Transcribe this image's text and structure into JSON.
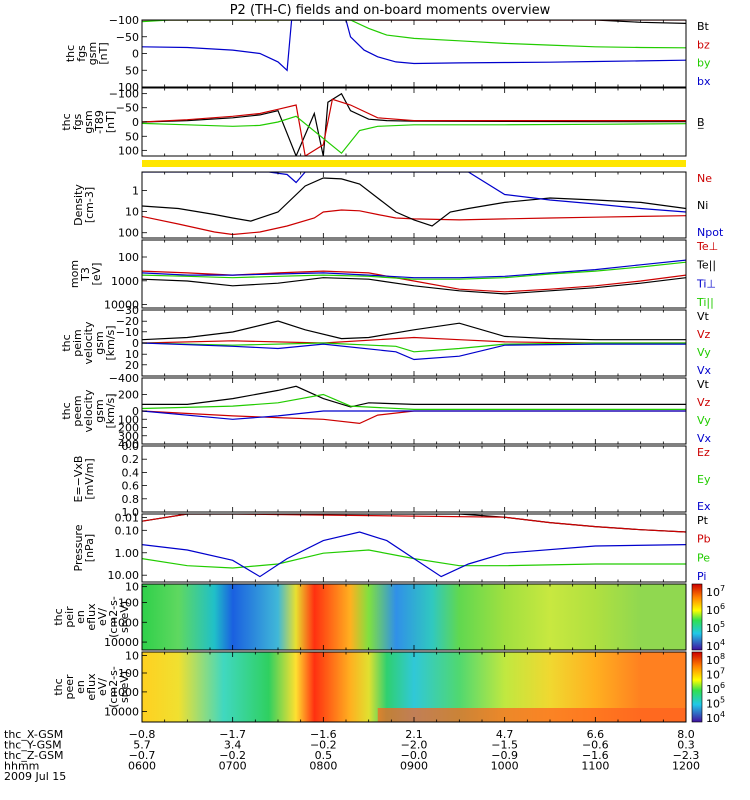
{
  "title": "P2 (TH-C) fields and on-board moments overview",
  "colors": {
    "black": "#000000",
    "red": "#cc0000",
    "green": "#22cc00",
    "blue": "#0000cc",
    "yellow": "#ffe600"
  },
  "chart_data": [
    {
      "type": "line",
      "id": "fgs",
      "ylabel": [
        "thc",
        "fgs",
        "gsm",
        "[nT]"
      ],
      "ylim": [
        -100,
        100
      ],
      "yticks": [
        "100",
        "50",
        "0",
        "−50",
        "−100"
      ],
      "series": [
        {
          "name": "Bt",
          "color": "black",
          "x": [
            6.0,
            6.5,
            7.0,
            7.4,
            7.6,
            8.0,
            8.3,
            8.6,
            8.9,
            9.5,
            10.0,
            10.5,
            11.0,
            11.5,
            12.0
          ],
          "y": [
            100,
            100,
            100,
            100,
            100,
            100,
            100,
            100,
            100,
            100,
            100,
            100,
            100,
            93,
            90
          ]
        },
        {
          "name": "bz",
          "color": "red",
          "x": [
            6.0,
            12.0
          ],
          "y": [
            100,
            100
          ]
        },
        {
          "name": "by",
          "color": "green",
          "x": [
            6.0,
            6.3,
            6.6,
            7.0,
            7.4,
            7.7,
            8.0,
            8.3,
            8.5,
            8.7,
            9.0,
            9.5,
            10.0,
            10.5,
            11.0,
            11.5,
            12.0
          ],
          "y": [
            95,
            100,
            100,
            100,
            100,
            100,
            100,
            100,
            75,
            55,
            45,
            38,
            30,
            25,
            20,
            18,
            17
          ]
        },
        {
          "name": "bx",
          "color": "blue",
          "x": [
            6.0,
            6.5,
            7.0,
            7.3,
            7.5,
            7.6,
            7.65,
            8.25,
            8.3,
            8.45,
            8.6,
            8.8,
            9.0,
            9.5,
            10.0,
            10.5,
            11.0,
            11.5,
            12.0
          ],
          "y": [
            20,
            18,
            10,
            0,
            -25,
            -50,
            100,
            100,
            50,
            10,
            -10,
            -25,
            -30,
            -28,
            -27,
            -26,
            -24,
            -22,
            -20
          ]
        }
      ]
    },
    {
      "type": "line",
      "id": "fgs_t89",
      "ylabel": [
        "thc",
        "fgs",
        "gsm",
        "-T89",
        "[nT]"
      ],
      "ylim": [
        -120,
        120
      ],
      "yticks": [
        "100",
        "50",
        "0",
        "−50",
        "−100"
      ],
      "series": [
        {
          "name": "B̲",
          "color": "black",
          "x": [
            6.0,
            6.5,
            7.0,
            7.3,
            7.5,
            7.7,
            7.9,
            8.0,
            8.05,
            8.2,
            8.3,
            8.5,
            8.7,
            9.0,
            10.0,
            11.0,
            12.0
          ],
          "y": [
            0,
            5,
            15,
            25,
            40,
            -120,
            30,
            -120,
            70,
            100,
            40,
            10,
            5,
            3,
            2,
            1,
            1
          ]
        },
        {
          "name": "",
          "color": "red",
          "x": [
            6.0,
            6.5,
            7.0,
            7.3,
            7.5,
            7.7,
            7.8,
            8.0,
            8.1,
            8.3,
            8.6,
            9.0,
            10.0,
            11.0,
            12.0
          ],
          "y": [
            0,
            8,
            20,
            30,
            45,
            60,
            -120,
            -80,
            80,
            60,
            15,
            5,
            5,
            5,
            5
          ]
        },
        {
          "name": "",
          "color": "green",
          "x": [
            6.0,
            6.5,
            7.0,
            7.3,
            7.5,
            7.7,
            8.2,
            8.4,
            8.6,
            9.0,
            10.0,
            11.0,
            12.0
          ],
          "y": [
            -5,
            -10,
            -15,
            -12,
            0,
            20,
            -110,
            -30,
            -15,
            -10,
            -10,
            -8,
            -6
          ]
        }
      ]
    },
    {
      "type": "line",
      "id": "density",
      "ylabel": [
        "Density",
        "[cm-3]"
      ],
      "ylim": [
        0.1,
        200
      ],
      "yscale": "log",
      "yticks": [
        "100",
        "10",
        "1"
      ],
      "series": [
        {
          "name": "Ne",
          "color": "red",
          "x": [
            6.0,
            6.4,
            6.8,
            7.0,
            7.3,
            7.6,
            7.9,
            8.0,
            8.2,
            8.4,
            8.6,
            8.8,
            9.0,
            9.5,
            10.0,
            10.5,
            11.0,
            11.5,
            12.0
          ],
          "y": [
            1.2,
            0.5,
            0.2,
            0.15,
            0.2,
            0.4,
            1.0,
            2.0,
            2.5,
            2.3,
            1.5,
            1.0,
            0.9,
            0.8,
            0.9,
            1.0,
            1.1,
            1.2,
            1.3
          ]
        },
        {
          "name": "Ni",
          "color": "black",
          "x": [
            6.0,
            6.4,
            6.8,
            7.0,
            7.2,
            7.5,
            7.8,
            8.0,
            8.2,
            8.4,
            8.6,
            8.8,
            9.0,
            9.2,
            9.4,
            9.6,
            10.0,
            10.5,
            11.0,
            11.5,
            12.0
          ],
          "y": [
            4,
            3,
            1.5,
            1,
            0.7,
            2,
            40,
            100,
            90,
            50,
            10,
            2,
            0.8,
            0.4,
            2,
            3,
            6,
            10,
            8,
            6,
            3
          ]
        },
        {
          "name": "Npot",
          "color": "blue",
          "x": [
            6.0,
            6.5,
            7.0,
            7.2,
            7.4,
            7.6,
            7.7,
            7.8,
            8.0,
            8.3,
            8.5,
            8.6,
            8.9,
            9.2,
            9.6,
            10.0,
            10.5,
            11.0,
            11.5,
            12.0
          ],
          "y": [
            200,
            200,
            200,
            200,
            200,
            150,
            60,
            200,
            200,
            200,
            200,
            200,
            200,
            200,
            200,
            15,
            8,
            5,
            3,
            2
          ]
        }
      ]
    },
    {
      "type": "line",
      "id": "temps",
      "ylabel": [
        "mom",
        "T3",
        "[eV]"
      ],
      "ylim": [
        30,
        10000
      ],
      "yscale": "log",
      "yticks": [
        "10000",
        "1000",
        "100"
      ],
      "series": [
        {
          "name": "Te⊥",
          "color": "red",
          "x": [
            6.0,
            6.5,
            7.0,
            7.5,
            8.0,
            8.5,
            9.0,
            9.5,
            10.0,
            10.5,
            11.0,
            11.5,
            12.0
          ],
          "y": [
            700,
            600,
            500,
            600,
            700,
            600,
            300,
            150,
            120,
            150,
            200,
            300,
            500
          ]
        },
        {
          "name": "Te||",
          "color": "black",
          "x": [
            6.0,
            6.5,
            7.0,
            7.5,
            8.0,
            8.5,
            9.0,
            9.5,
            10.0,
            10.5,
            11.0,
            11.5,
            12.0
          ],
          "y": [
            350,
            300,
            200,
            250,
            400,
            350,
            200,
            130,
            100,
            130,
            170,
            250,
            400
          ]
        },
        {
          "name": "Ti⊥",
          "color": "blue",
          "x": [
            6.0,
            6.5,
            7.0,
            7.5,
            8.0,
            8.5,
            9.0,
            9.5,
            10.0,
            10.5,
            11.0,
            11.5,
            12.0
          ],
          "y": [
            600,
            500,
            500,
            550,
            600,
            500,
            400,
            400,
            450,
            600,
            800,
            1200,
            1800
          ]
        },
        {
          "name": "Ti||",
          "color": "green",
          "x": [
            6.0,
            6.5,
            7.0,
            7.5,
            8.0,
            8.5,
            9.0,
            9.5,
            10.0,
            10.5,
            11.0,
            11.5,
            12.0
          ],
          "y": [
            500,
            450,
            400,
            450,
            500,
            450,
            350,
            350,
            400,
            550,
            700,
            1000,
            1500
          ]
        }
      ]
    },
    {
      "type": "line",
      "id": "peim_velocity",
      "ylabel": [
        "thc",
        "peim",
        "velocity",
        "gsm",
        "[km/s]"
      ],
      "ylim": [
        -30,
        30
      ],
      "yticks": [
        "20",
        "10",
        "0",
        "−10",
        "−20",
        "−30"
      ],
      "series": [
        {
          "name": "Vt",
          "color": "black",
          "x": [
            6.0,
            6.5,
            7.0,
            7.5,
            7.8,
            8.2,
            8.5,
            9.0,
            9.5,
            10.0,
            10.5,
            11.0,
            11.5,
            12.0
          ],
          "y": [
            3,
            5,
            10,
            20,
            12,
            4,
            5,
            12,
            18,
            6,
            4,
            3,
            3,
            3
          ]
        },
        {
          "name": "Vz",
          "color": "red",
          "x": [
            6.0,
            7.0,
            8.0,
            9.0,
            9.5,
            10.0,
            11.0,
            12.0
          ],
          "y": [
            0,
            2,
            0,
            5,
            3,
            1,
            0,
            0
          ]
        },
        {
          "name": "Vy",
          "color": "green",
          "x": [
            6.0,
            7.0,
            8.0,
            8.8,
            9.0,
            9.5,
            10.0,
            11.0,
            12.0
          ],
          "y": [
            0,
            -2,
            0,
            -3,
            -8,
            -5,
            -1,
            0,
            0
          ]
        },
        {
          "name": "Vx",
          "color": "blue",
          "x": [
            6.0,
            7.0,
            7.5,
            8.0,
            8.8,
            9.0,
            9.5,
            10.0,
            11.0,
            12.0
          ],
          "y": [
            0,
            -3,
            -5,
            -1,
            -8,
            -15,
            -12,
            -2,
            -1,
            -1
          ]
        }
      ]
    },
    {
      "type": "line",
      "id": "peem_velocity",
      "ylabel": [
        "thc",
        "peem",
        "velocity",
        "gsm",
        "[km/s]"
      ],
      "ylim": [
        -400,
        400
      ],
      "yticks": [
        "400",
        "300",
        "200",
        "100",
        "0",
        "−200",
        "−400"
      ],
      "series": [
        {
          "name": "Vt",
          "color": "black",
          "x": [
            6.0,
            6.5,
            7.0,
            7.5,
            7.7,
            8.0,
            8.3,
            8.5,
            9.0,
            10.0,
            11.0,
            12.0
          ],
          "y": [
            80,
            80,
            150,
            250,
            300,
            150,
            50,
            100,
            80,
            80,
            80,
            80
          ]
        },
        {
          "name": "Vz",
          "color": "red",
          "x": [
            6.0,
            7.0,
            7.5,
            8.0,
            8.4,
            8.6,
            9.0,
            10.0,
            11.0,
            12.0
          ],
          "y": [
            0,
            -60,
            -80,
            -100,
            -150,
            -50,
            0,
            0,
            0,
            0
          ]
        },
        {
          "name": "Vy",
          "color": "green",
          "x": [
            6.0,
            7.0,
            7.5,
            8.0,
            8.3,
            9.0,
            10.0,
            11.0,
            12.0
          ],
          "y": [
            30,
            60,
            100,
            200,
            60,
            20,
            20,
            20,
            20
          ]
        },
        {
          "name": "Vx",
          "color": "blue",
          "x": [
            6.0,
            7.0,
            7.5,
            8.0,
            9.0,
            10.0,
            11.0,
            12.0
          ],
          "y": [
            0,
            -100,
            -60,
            0,
            0,
            0,
            0,
            0
          ]
        }
      ]
    },
    {
      "type": "line",
      "id": "efield",
      "ylabel": [
        "E=−VxB",
        "[mV/m]"
      ],
      "ylim": [
        0,
        1
      ],
      "yticks": [
        "1.0",
        "0.8",
        "0.6",
        "0.4",
        "0.2",
        "0.0"
      ],
      "series": [
        {
          "name": "Ez",
          "color": "red",
          "x": [],
          "y": []
        },
        {
          "name": "Ey",
          "color": "green",
          "x": [],
          "y": []
        },
        {
          "name": "Ex",
          "color": "blue",
          "x": [],
          "y": []
        }
      ]
    },
    {
      "type": "line",
      "id": "pressure",
      "ylabel": [
        "Pressure",
        "[nPa]"
      ],
      "ylim": [
        0.005,
        30
      ],
      "yscale": "log",
      "yticks": [
        "10.00",
        "1.00",
        "0.10",
        "0.01"
      ],
      "series": [
        {
          "name": "Pt",
          "color": "black",
          "x": [
            6.0,
            6.5,
            7.0,
            7.5,
            8.0,
            8.5,
            9.0,
            9.5,
            10.0,
            10.5,
            11.0,
            11.5,
            12.0
          ],
          "y": [
            12,
            30,
            30,
            30,
            30,
            30,
            30,
            30,
            20,
            10,
            6,
            4,
            3
          ]
        },
        {
          "name": "Pb",
          "color": "red",
          "x": [
            6.0,
            6.5,
            7.0,
            10.0,
            10.5,
            11.0,
            11.5,
            12.0
          ],
          "y": [
            12,
            30,
            30,
            20,
            10,
            6,
            4,
            3
          ]
        },
        {
          "name": "Pe",
          "color": "green",
          "x": [
            6.0,
            6.5,
            7.0,
            7.5,
            8.0,
            8.5,
            9.0,
            9.5,
            10.0,
            11.0,
            12.0
          ],
          "y": [
            0.1,
            0.04,
            0.03,
            0.05,
            0.2,
            0.3,
            0.1,
            0.04,
            0.04,
            0.05,
            0.05
          ]
        },
        {
          "name": "Pi",
          "color": "blue",
          "x": [
            6.0,
            6.5,
            7.0,
            7.3,
            7.6,
            8.0,
            8.4,
            8.7,
            9.0,
            9.3,
            9.6,
            10.0,
            11.0,
            12.0
          ],
          "y": [
            0.6,
            0.3,
            0.08,
            0.01,
            0.1,
            1.0,
            3.0,
            1.0,
            0.1,
            0.01,
            0.05,
            0.2,
            0.5,
            0.6
          ]
        }
      ]
    },
    {
      "type": "heatmap",
      "id": "peir_spec",
      "ylabel": [
        "thc",
        "peir",
        "en",
        "eflux",
        "eV/",
        "(cm2-s-",
        "sr-eV)"
      ],
      "yticks": [
        "10000",
        "1000",
        "100",
        "10"
      ],
      "colorbar_ticks": [
        "10",
        "10",
        "10",
        "10"
      ],
      "colorbar_exps": [
        "7",
        "6",
        "5",
        "4"
      ]
    },
    {
      "type": "heatmap",
      "id": "peer_spec",
      "ylabel": [
        "thc",
        "peer",
        "en",
        "eflux",
        "eV/",
        "(cm2-s-",
        "sr-eV)"
      ],
      "yticks": [
        "10000",
        "1000",
        "100",
        "10"
      ],
      "colorbar_ticks": [
        "10",
        "10",
        "10",
        "10",
        "10"
      ],
      "colorbar_exps": [
        "8",
        "7",
        "6",
        "5",
        "4"
      ]
    }
  ],
  "bottom": {
    "rows": [
      {
        "label": "thc_X-GSM",
        "values": [
          "−0.8",
          "−1.7",
          "−1.6",
          "2.1",
          "4.7",
          "6.6",
          "8.0"
        ]
      },
      {
        "label": "thc_Y-GSM",
        "values": [
          "5.7",
          "3.4",
          "−0.2",
          "−2.0",
          "−1.5",
          "−0.6",
          "0.3"
        ]
      },
      {
        "label": "thc_Z-GSM",
        "values": [
          "−0.7",
          "−0.2",
          "0.5",
          "−0.0",
          "−0.9",
          "−1.6",
          "−2.3"
        ]
      },
      {
        "label": "hhmm",
        "values": [
          "0600",
          "0700",
          "0800",
          "0900",
          "1000",
          "1100",
          "1200"
        ]
      }
    ],
    "date": "2009 Jul 15"
  }
}
